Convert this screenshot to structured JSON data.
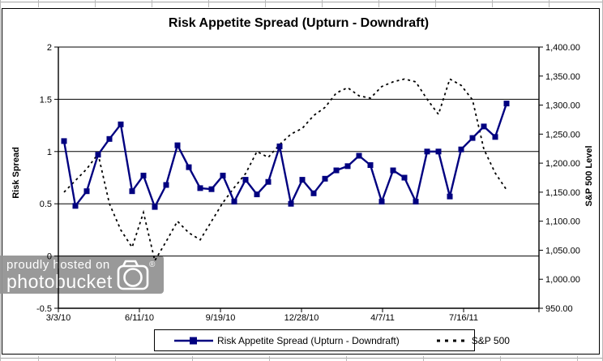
{
  "chart": {
    "title": "Risk Appetite Spread (Upturn - Downdraft)",
    "left_axis": {
      "title": "Risk Spread",
      "min": -0.5,
      "max": 2,
      "step": 0.5,
      "tick_labels": [
        "2",
        "1.5",
        "1",
        "0.5",
        "0",
        "-0.5"
      ]
    },
    "right_axis": {
      "title": "S&P 500 Level",
      "min": 950,
      "max": 1400,
      "step": 50,
      "tick_labels": [
        "1,400.00",
        "1,350.00",
        "1,300.00",
        "1,250.00",
        "1,200.00",
        "1,150.00",
        "1,100.00",
        "1,050.00",
        "1,000.00",
        "950.00"
      ]
    },
    "x_axis": {
      "tick_labels": [
        "3/3/10",
        "6/11/10",
        "9/19/10",
        "12/28/10",
        "4/7/11",
        "7/16/11"
      ],
      "tick_spacing_days": 100
    },
    "legend": {
      "items": [
        {
          "label": "Risk Appetite Spread (Upturn - Downdraft)",
          "style": "solid-line-square-marker"
        },
        {
          "label": "S&P 500",
          "style": "dashed-line"
        }
      ]
    },
    "colors": {
      "risk_line": "#000080",
      "sp500_line": "#000000",
      "gridline": "#000000",
      "watermark_bg": "#949494",
      "watermark_text": "#ffffff"
    }
  },
  "chart_data": {
    "type": "line",
    "title": "Risk Appetite Spread (Upturn - Downdraft)",
    "x_start_date": "3/3/10",
    "x_end_day": 593,
    "grid": "horizontal-only",
    "legend_position": "bottom",
    "day_offsets": [
      7,
      21,
      35,
      49,
      63,
      77,
      91,
      105,
      119,
      133,
      147,
      161,
      175,
      189,
      203,
      217,
      231,
      245,
      259,
      273,
      287,
      301,
      315,
      329,
      343,
      357,
      371,
      385,
      399,
      413,
      427,
      441,
      455,
      469,
      483,
      497,
      511,
      525,
      539,
      553
    ],
    "dates": [
      "3/10/10",
      "3/24/10",
      "4/7/10",
      "4/21/10",
      "5/5/10",
      "5/19/10",
      "6/2/10",
      "6/16/10",
      "6/30/10",
      "7/14/10",
      "7/28/10",
      "8/11/10",
      "8/25/10",
      "9/8/10",
      "9/22/10",
      "10/6/10",
      "10/20/10",
      "11/3/10",
      "11/17/10",
      "12/1/10",
      "12/15/10",
      "12/29/10",
      "1/12/11",
      "1/26/11",
      "2/9/11",
      "2/23/11",
      "3/9/11",
      "3/23/11",
      "4/6/11",
      "4/20/11",
      "5/4/11",
      "5/18/11",
      "6/1/11",
      "6/15/11",
      "6/29/11",
      "7/13/11",
      "7/27/11",
      "8/10/11",
      "8/24/11",
      "9/7/11"
    ],
    "series": [
      {
        "name": "Risk Appetite Spread (Upturn - Downdraft)",
        "axis": "left",
        "ylim": [
          -0.5,
          2
        ],
        "values": [
          1.1,
          0.48,
          0.62,
          0.97,
          1.12,
          1.26,
          0.62,
          0.77,
          0.47,
          0.68,
          1.06,
          0.85,
          0.65,
          0.64,
          0.77,
          0.52,
          0.73,
          0.59,
          0.71,
          1.05,
          0.5,
          0.73,
          0.6,
          0.74,
          0.82,
          0.86,
          0.96,
          0.87,
          0.52,
          0.82,
          0.75,
          0.52,
          1.0,
          1.0,
          0.57,
          1.02,
          1.13,
          1.24,
          1.14,
          1.46
        ]
      },
      {
        "name": "S&P 500",
        "axis": "right",
        "ylim": [
          950,
          1400
        ],
        "values": [
          1150,
          1170,
          1190,
          1216,
          1130,
          1085,
          1055,
          1115,
          1032,
          1065,
          1100,
          1080,
          1068,
          1100,
          1132,
          1158,
          1182,
          1220,
          1210,
          1232,
          1250,
          1260,
          1282,
          1296,
          1321,
          1330,
          1316,
          1312,
          1332,
          1340,
          1345,
          1340,
          1310,
          1284,
          1345,
          1334,
          1309,
          1224,
          1183,
          1154
        ]
      }
    ]
  },
  "watermark": {
    "line1": "proudly hosted on",
    "line2": "photobucket",
    "registered_mark": "®"
  }
}
